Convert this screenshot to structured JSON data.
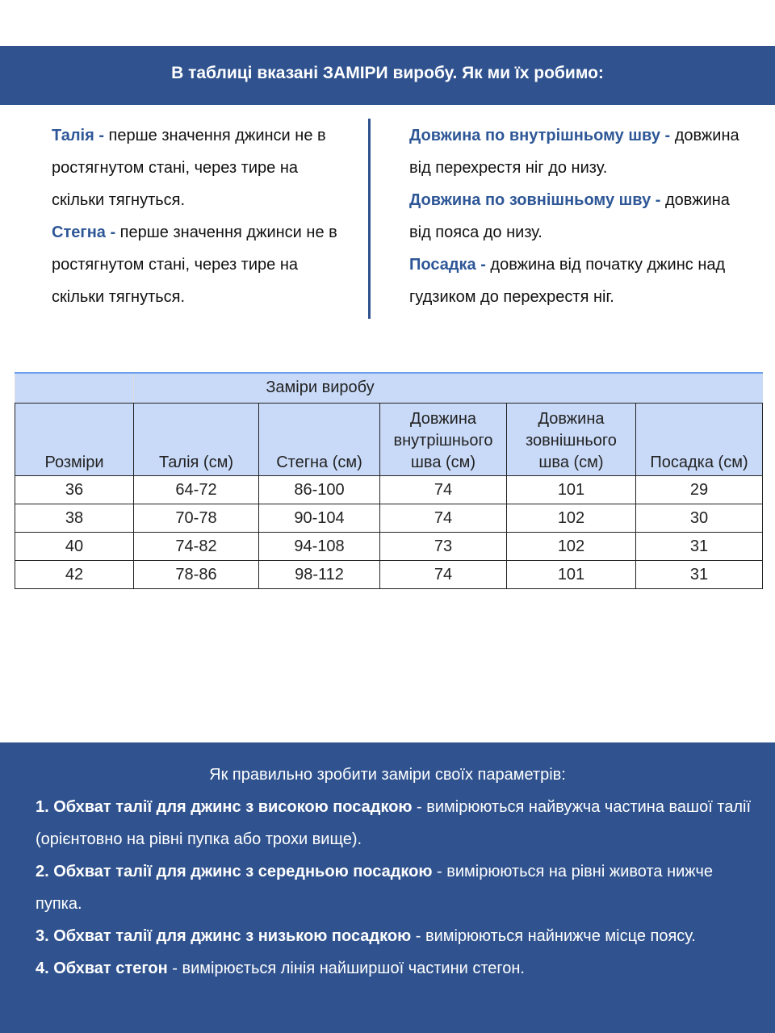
{
  "header": {
    "title": "В таблиці вказані ЗАМІРИ виробу. Як ми їх робимо:"
  },
  "colors": {
    "band": "#30538f",
    "accent": "#2e5797",
    "table_header": "#c9daf8"
  },
  "left_definitions": [
    {
      "term": "Талія -",
      "text": " перше значення джинси не в ростягнутом стані, через тире на скільки тягнуться."
    },
    {
      "term": "Стегна -",
      "text": " перше значення джинси не в ростягнутом стані, через тире на скільки тягнуться."
    }
  ],
  "right_definitions": [
    {
      "term": "Довжина по внутрішньому шву -",
      "text": " довжина від перехрестя ніг до низу."
    },
    {
      "term": "Довжина по зовнішньому шву -",
      "text": " довжина від пояса до низу."
    },
    {
      "term": "Посадка -",
      "text": " довжина від початку джинс над гудзиком до перехрестя ніг."
    }
  ],
  "table": {
    "group_header": "Заміри виробу",
    "columns": [
      "Розміри",
      "Талія (см)",
      "Стегна (см)",
      "Довжина внутрішнього шва (см)",
      "Довжина зовнішнього шва (см)",
      "Посадка (см)"
    ],
    "rows": [
      [
        "36",
        "64-72",
        "86-100",
        "74",
        "101",
        "29"
      ],
      [
        "38",
        "70-78",
        "90-104",
        "74",
        "102",
        "30"
      ],
      [
        "40",
        "74-82",
        "94-108",
        "73",
        "102",
        "31"
      ],
      [
        "42",
        "78-86",
        "98-112",
        "74",
        "101",
        "31"
      ]
    ]
  },
  "instructions": {
    "title": "Як правильно зробити заміри своїх параметрів:",
    "items": [
      {
        "term": "1. Обхват талії для джинс з високою посадкою",
        "text": " - вимірюються найвужча частина вашої талії (орієнтовно на рівні пупка або трохи вище)."
      },
      {
        "term": "2. Обхват талії для джинс з середньою посадкою",
        "text": " - вимірюються на рівні живота нижче пупка."
      },
      {
        "term": "3. Обхват талії для джинс з низькою посадкою",
        "text": " - вимірюються найнижче місце поясу."
      },
      {
        "term": "4. Обхват стегон",
        "text": " - вимірюється лінія найширшої частини стегон."
      }
    ]
  }
}
